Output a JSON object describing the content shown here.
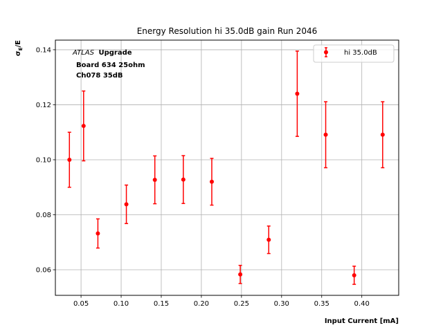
{
  "chart_data": {
    "type": "scatter",
    "title": "Energy Resolution hi 35.0dB gain Run 2046",
    "xlabel": "Input Current [mA]",
    "ylabel": "σE/E",
    "xlim": [
      0.018,
      0.446
    ],
    "ylim": [
      0.0507,
      0.1435
    ],
    "x_ticks": [
      0.05,
      0.1,
      0.15,
      0.2,
      0.25,
      0.3,
      0.35,
      0.4
    ],
    "x_tick_labels": [
      "0.05",
      "0.10",
      "0.15",
      "0.20",
      "0.25",
      "0.30",
      "0.35",
      "0.40"
    ],
    "y_ticks": [
      0.06,
      0.08,
      0.1,
      0.12,
      0.14
    ],
    "y_tick_labels": [
      "0.06",
      "0.08",
      "0.10",
      "0.12",
      "0.14"
    ],
    "grid": true,
    "legend_position": "top-right",
    "annotation": {
      "atlas": "ATLAS",
      "upgrade": "Upgrade",
      "line2": "Board 634 25ohm",
      "line3": "Ch078 35dB"
    },
    "series": [
      {
        "name": "hi 35.0dB",
        "color": "#ff0000",
        "marker": "circle",
        "points": [
          {
            "x": 0.0355,
            "y": 0.1,
            "err": 0.01
          },
          {
            "x": 0.0532,
            "y": 0.1123,
            "err": 0.0127
          },
          {
            "x": 0.071,
            "y": 0.0732,
            "err": 0.0053
          },
          {
            "x": 0.1065,
            "y": 0.0838,
            "err": 0.007
          },
          {
            "x": 0.142,
            "y": 0.0927,
            "err": 0.0087
          },
          {
            "x": 0.1775,
            "y": 0.0928,
            "err": 0.0087
          },
          {
            "x": 0.213,
            "y": 0.092,
            "err": 0.0085
          },
          {
            "x": 0.2485,
            "y": 0.0583,
            "err": 0.0033
          },
          {
            "x": 0.284,
            "y": 0.0709,
            "err": 0.005
          },
          {
            "x": 0.3195,
            "y": 0.124,
            "err": 0.0155
          },
          {
            "x": 0.355,
            "y": 0.1091,
            "err": 0.012
          },
          {
            "x": 0.3905,
            "y": 0.058,
            "err": 0.0033
          },
          {
            "x": 0.426,
            "y": 0.1091,
            "err": 0.012
          }
        ]
      }
    ]
  }
}
